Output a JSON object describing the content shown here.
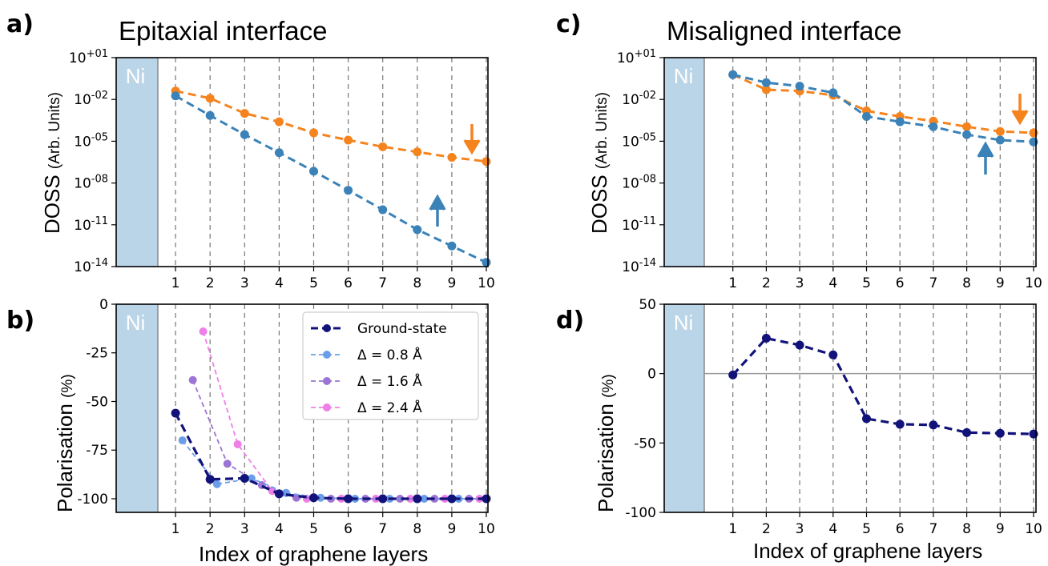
{
  "colors": {
    "spin_up": "#3a82b8",
    "spin_down": "#f5841f",
    "ground_state": "#12137a",
    "d08": "#6b9ee8",
    "d16": "#9c74d4",
    "d24": "#ef7ee8",
    "ni_fill": "#bad5e8"
  },
  "panel_labels": [
    "a)",
    "b)",
    "c)",
    "d)"
  ],
  "titles": {
    "a": "Epitaxial interface",
    "c": "Misaligned interface"
  },
  "ni_label": "Ni",
  "xlabel": "Index of graphene layers",
  "dos_ylabel_main": "DOSS",
  "dos_ylabel_units": "(Arb. Units)",
  "pol_ylabel_main": "Polarisation",
  "pol_ylabel_units": "(%)",
  "x_ticks": [
    "1",
    "2",
    "3",
    "4",
    "5",
    "6",
    "7",
    "8",
    "9",
    "10"
  ],
  "dos_yticks": [
    "10+01",
    "10-02",
    "10-05",
    "10-08",
    "10-11",
    "10-14"
  ],
  "pol_b_yticks": [
    "0",
    "-25",
    "-50",
    "-75",
    "-100"
  ],
  "pol_d_yticks": [
    "50",
    "0",
    "-50",
    "-100"
  ],
  "legend": [
    "Ground-state",
    "Δ = 0.8 Å",
    "Δ = 1.6 Å",
    "Δ = 2.4 Å"
  ],
  "chart_data": [
    {
      "panel": "a",
      "type": "line",
      "title": "Epitaxial interface",
      "ylabel": "DOSS (Arb. Units)",
      "xlabel": "",
      "yscale": "log",
      "ylim": [
        1e-14,
        10.0
      ],
      "x": [
        1,
        2,
        3,
        4,
        5,
        6,
        7,
        8,
        9,
        10
      ],
      "series": [
        {
          "name": "↓",
          "color": "#f5841f",
          "values": [
            0.04,
            0.012,
            0.001,
            0.00025,
            4e-05,
            1.2e-05,
            4e-06,
            1.7e-06,
            7e-07,
            3.5e-07
          ]
        },
        {
          "name": "↑",
          "color": "#3a82b8",
          "values": [
            0.018,
            0.0007,
            3e-05,
            1.5e-06,
            7e-08,
            3e-09,
            1.2e-10,
            4.5e-12,
            3e-13,
            2e-14
          ]
        }
      ]
    },
    {
      "panel": "b",
      "type": "line",
      "ylabel": "Polarisation (%)",
      "xlabel": "Index of graphene layers",
      "ylim": [
        -107,
        0
      ],
      "series": [
        {
          "name": "Ground-state",
          "color": "#12137a",
          "x": [
            1,
            2,
            3,
            4,
            5,
            6,
            7,
            8,
            9,
            10
          ],
          "values": [
            -56,
            -90,
            -89.5,
            -97.5,
            -99.5,
            -100,
            -100,
            -100,
            -100,
            -100
          ]
        },
        {
          "name": "Δ = 0.8 Å",
          "color": "#6b9ee8",
          "x": [
            1.2,
            2.2,
            3.2,
            4.2,
            5.2,
            6.2,
            7.2,
            8.2,
            9.2,
            10
          ],
          "values": [
            -70,
            -92.5,
            -89.5,
            -97,
            -99.5,
            -100,
            -100,
            -100,
            -100,
            -100
          ]
        },
        {
          "name": "Δ = 1.6 Å",
          "color": "#9c74d4",
          "x": [
            1.5,
            2.5,
            3.5,
            4.5,
            5.5,
            6.5,
            7.5,
            8.5,
            9.5,
            10
          ],
          "values": [
            -39,
            -82,
            -93,
            -99.5,
            -100,
            -100,
            -100,
            -100,
            -100,
            -100
          ]
        },
        {
          "name": "Δ = 2.4 Å",
          "color": "#ef7ee8",
          "x": [
            1.8,
            2.8,
            3.8,
            4.8,
            5.8,
            6.8,
            7.8,
            8.8,
            9.8,
            10
          ],
          "values": [
            -14,
            -72,
            -96,
            -100,
            -100,
            -100,
            -100,
            -100,
            -100,
            -100
          ]
        }
      ]
    },
    {
      "panel": "c",
      "type": "line",
      "title": "Misaligned interface",
      "ylabel": "DOSS (Arb. Units)",
      "xlabel": "",
      "yscale": "log",
      "ylim": [
        1e-14,
        10.0
      ],
      "x": [
        1,
        2,
        3,
        4,
        5,
        6,
        7,
        8,
        9,
        10
      ],
      "series": [
        {
          "name": "↓",
          "color": "#f5841f",
          "values": [
            0.6,
            0.05,
            0.04,
            0.02,
            0.0015,
            0.0006,
            0.00028,
            0.00011,
            5e-05,
            4e-05
          ]
        },
        {
          "name": "↑",
          "color": "#3a82b8",
          "values": [
            0.6,
            0.16,
            0.09,
            0.03,
            0.0006,
            0.00025,
            0.00011,
            3e-05,
            1.2e-05,
            9e-06
          ]
        }
      ]
    },
    {
      "panel": "d",
      "type": "line",
      "ylabel": "Polarisation (%)",
      "xlabel": "Index of graphene layers",
      "ylim": [
        -100,
        50
      ],
      "x": [
        1,
        2,
        3,
        4,
        5,
        6,
        7,
        8,
        9,
        10
      ],
      "series": [
        {
          "name": "",
          "color": "#12137a",
          "values": [
            -1,
            25.5,
            20.5,
            13.5,
            -32.5,
            -36.5,
            -37,
            -42.5,
            -43,
            -43.5
          ]
        }
      ]
    }
  ]
}
